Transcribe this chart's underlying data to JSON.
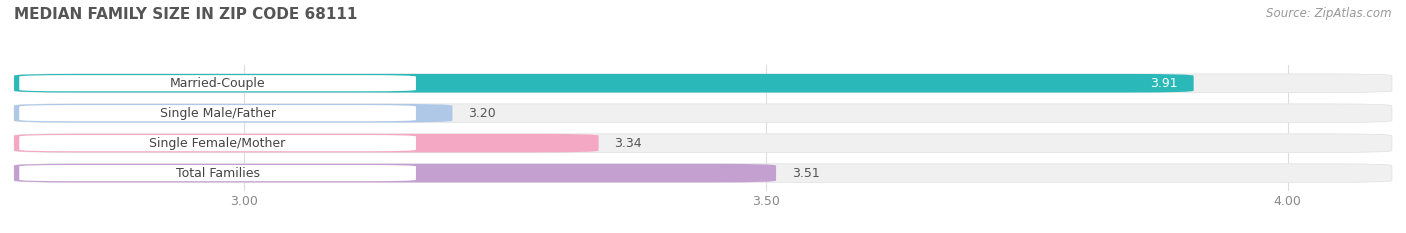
{
  "title": "MEDIAN FAMILY SIZE IN ZIP CODE 68111",
  "source": "Source: ZipAtlas.com",
  "categories": [
    "Married-Couple",
    "Single Male/Father",
    "Single Female/Mother",
    "Total Families"
  ],
  "values": [
    3.91,
    3.2,
    3.34,
    3.51
  ],
  "bar_colors": [
    "#2ab8b8",
    "#b0c8e8",
    "#f4a8c4",
    "#c4a0d0"
  ],
  "xlim": [
    2.78,
    4.1
  ],
  "xmin": 2.78,
  "xticks": [
    3.0,
    3.5,
    4.0
  ],
  "bar_height": 0.62,
  "title_fontsize": 11,
  "source_fontsize": 8.5,
  "tick_fontsize": 9,
  "cat_fontsize": 9,
  "value_fontsize": 9,
  "background_color": "#ffffff",
  "bar_bg_color": "#f0f0f0",
  "label_pill_color": "#ffffff",
  "grid_color": "#dddddd"
}
